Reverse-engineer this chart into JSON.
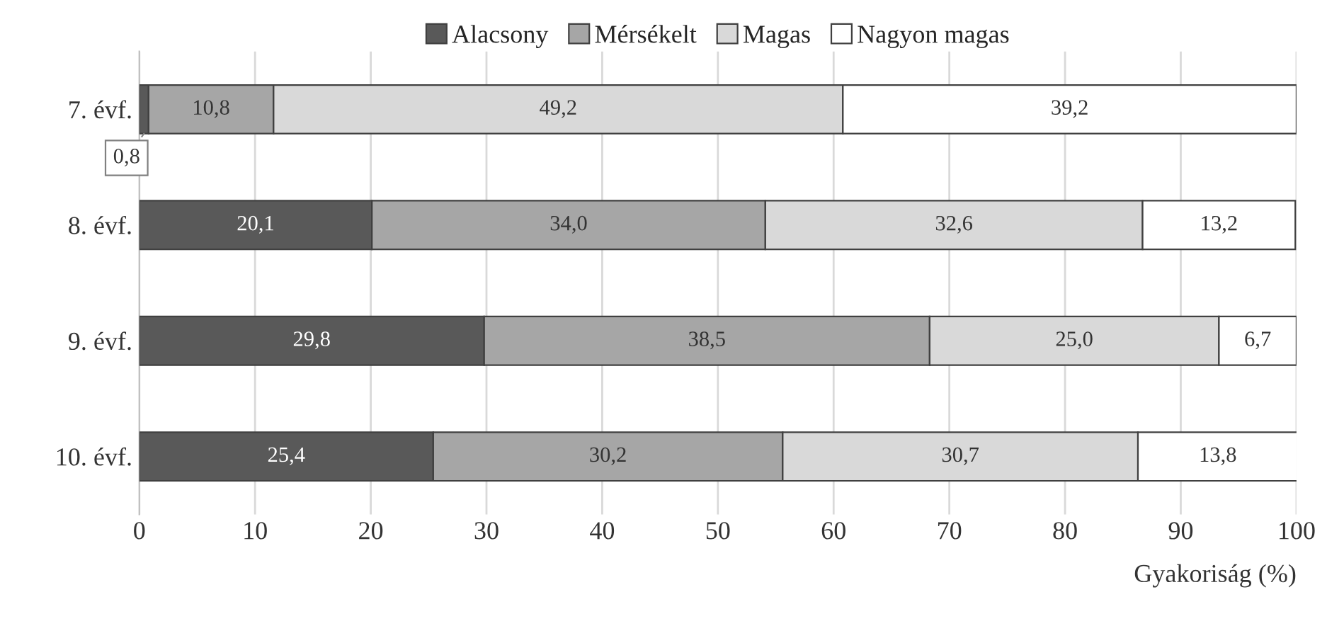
{
  "chart_data": {
    "type": "bar",
    "orientation": "horizontal",
    "stacked": true,
    "categories": [
      "7. évf.",
      "8. évf.",
      "9. évf.",
      "10. évf."
    ],
    "series": [
      {
        "name": "Alacsony",
        "color": "#595959",
        "values": [
          0.8,
          20.1,
          29.8,
          25.4
        ],
        "value_labels": [
          "0,8",
          "20,1",
          "29,8",
          "25,4"
        ]
      },
      {
        "name": "Mérsékelt",
        "color": "#a6a6a6",
        "values": [
          10.8,
          34.0,
          38.5,
          30.2
        ],
        "value_labels": [
          "10,8",
          "34,0",
          "38,5",
          "30,2"
        ]
      },
      {
        "name": "Magas",
        "color": "#d9d9d9",
        "values": [
          49.2,
          32.6,
          25.0,
          30.7
        ],
        "value_labels": [
          "49,2",
          "32,6",
          "25,0",
          "30,7"
        ]
      },
      {
        "name": "Nagyon magas",
        "color": "#ffffff",
        "values": [
          39.2,
          13.2,
          6.7,
          13.8
        ],
        "value_labels": [
          "39,2",
          "13,2",
          "6,7",
          "13,8"
        ]
      }
    ],
    "xlim": [
      0,
      100
    ],
    "xticks": [
      0,
      10,
      20,
      30,
      40,
      50,
      60,
      70,
      80,
      90,
      100
    ],
    "xlabel": "Gyakoriság (%)",
    "grid": "x",
    "legend": "top"
  }
}
